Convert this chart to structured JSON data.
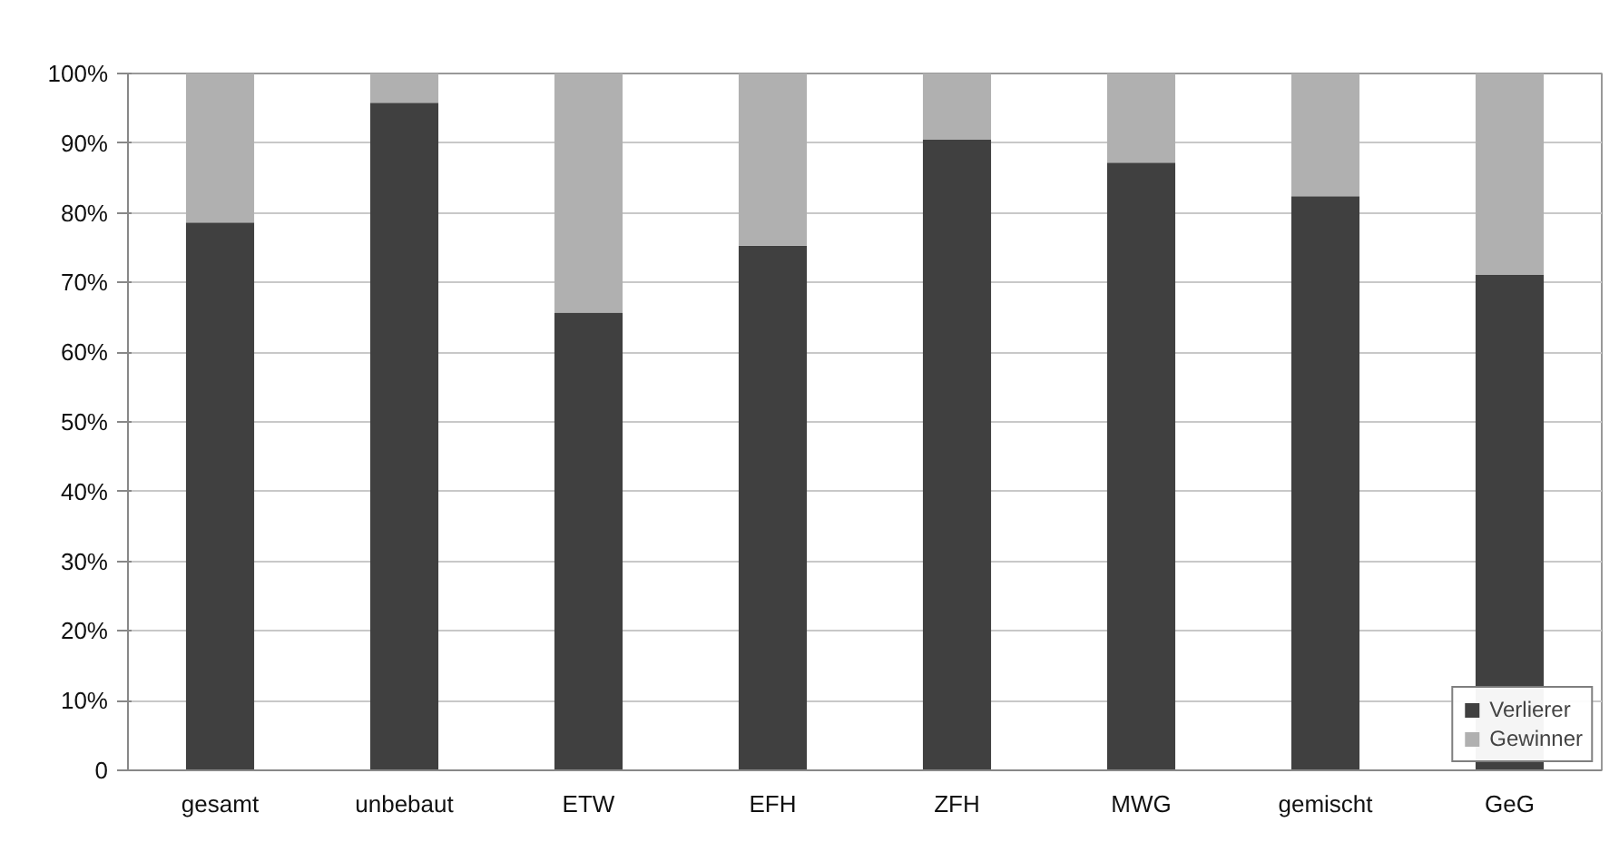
{
  "chart_data": {
    "type": "bar",
    "stacked": true,
    "categories": [
      "gesamt",
      "unbebaut",
      "ETW",
      "EFH",
      "ZFH",
      "MWG",
      "gemischt",
      "GeG"
    ],
    "series": [
      {
        "name": "Verlierer",
        "color": "#404040",
        "values": [
          78.6,
          95.8,
          65.7,
          75.3,
          90.5,
          87.2,
          82.4,
          71.1
        ]
      },
      {
        "name": "Gewinner",
        "color": "#b0b0b0",
        "values": [
          21.4,
          4.2,
          34.3,
          24.7,
          9.5,
          12.8,
          17.6,
          28.9
        ]
      }
    ],
    "ylim": [
      0,
      100
    ],
    "yticks": [
      {
        "value": 0,
        "label": "0"
      },
      {
        "value": 10,
        "label": "10%"
      },
      {
        "value": 20,
        "label": "20%"
      },
      {
        "value": 30,
        "label": "30%"
      },
      {
        "value": 40,
        "label": "40%"
      },
      {
        "value": 50,
        "label": "50%"
      },
      {
        "value": 60,
        "label": "60%"
      },
      {
        "value": 70,
        "label": "70%"
      },
      {
        "value": 80,
        "label": "80%"
      },
      {
        "value": 90,
        "label": "90%"
      },
      {
        "value": 100,
        "label": "100%"
      }
    ],
    "grid": "y",
    "legend": "bottom right"
  }
}
